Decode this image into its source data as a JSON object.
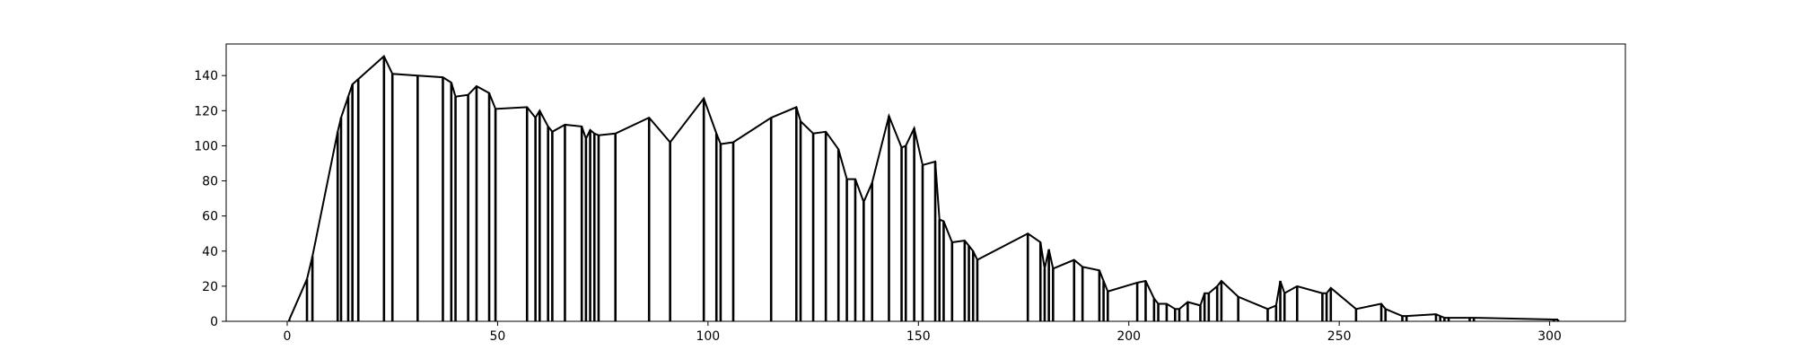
{
  "chart_data": {
    "type": "line",
    "title": "",
    "xlabel": "",
    "ylabel": "",
    "xlim": [
      -14.5,
      318
    ],
    "ylim": [
      0,
      158
    ],
    "xticks": [
      0,
      50,
      100,
      150,
      200,
      250,
      300
    ],
    "yticks": [
      0,
      20,
      40,
      60,
      80,
      100,
      120,
      140
    ],
    "grid": false,
    "legend": "none",
    "line_color": "#000000",
    "series": [
      {
        "x": [
          0.5,
          4.7,
          6,
          12,
          12.8,
          14.5,
          15.5,
          16.9,
          23,
          25,
          31,
          37,
          39,
          40,
          43,
          45,
          48,
          49.5,
          57,
          59,
          60,
          62,
          63,
          66,
          70,
          71,
          72,
          73,
          74,
          78,
          86,
          91,
          99,
          102,
          103,
          106,
          115,
          121,
          122,
          125,
          128,
          131,
          133,
          135,
          137,
          139,
          143,
          146,
          147,
          149,
          151,
          154,
          155,
          156,
          158,
          161,
          162,
          163,
          164,
          176,
          179,
          180,
          181,
          182,
          187,
          189,
          193,
          194,
          195,
          202,
          204,
          206,
          207,
          209,
          211,
          212,
          214,
          217,
          218,
          219,
          221,
          222,
          226,
          233,
          235,
          236,
          237,
          240,
          246,
          247,
          248,
          254,
          260,
          261,
          265,
          266,
          273,
          274,
          275,
          276,
          281,
          282,
          301,
          302
        ],
        "y": [
          1,
          24,
          37,
          108,
          116,
          128,
          135,
          138,
          151,
          141,
          140,
          139,
          136,
          128,
          129,
          134,
          130,
          121,
          122,
          116,
          120,
          111,
          108,
          112,
          111,
          104,
          109,
          107,
          106,
          107,
          116,
          102,
          127,
          107,
          101,
          102,
          116,
          122,
          114,
          107,
          108,
          98,
          81,
          81,
          68,
          79,
          117,
          99,
          100,
          110,
          89,
          91,
          58,
          57,
          45,
          46,
          43,
          40,
          35,
          50,
          45,
          30,
          41,
          30,
          35,
          31,
          29,
          23,
          17,
          22,
          23,
          13,
          10,
          10,
          7,
          7,
          11,
          9,
          16,
          16,
          20,
          23,
          14,
          7,
          9,
          23,
          16,
          20,
          16,
          16,
          19,
          7,
          10,
          7,
          3,
          3,
          4,
          3,
          2,
          2,
          2,
          2,
          1,
          1
        ]
      }
    ]
  }
}
